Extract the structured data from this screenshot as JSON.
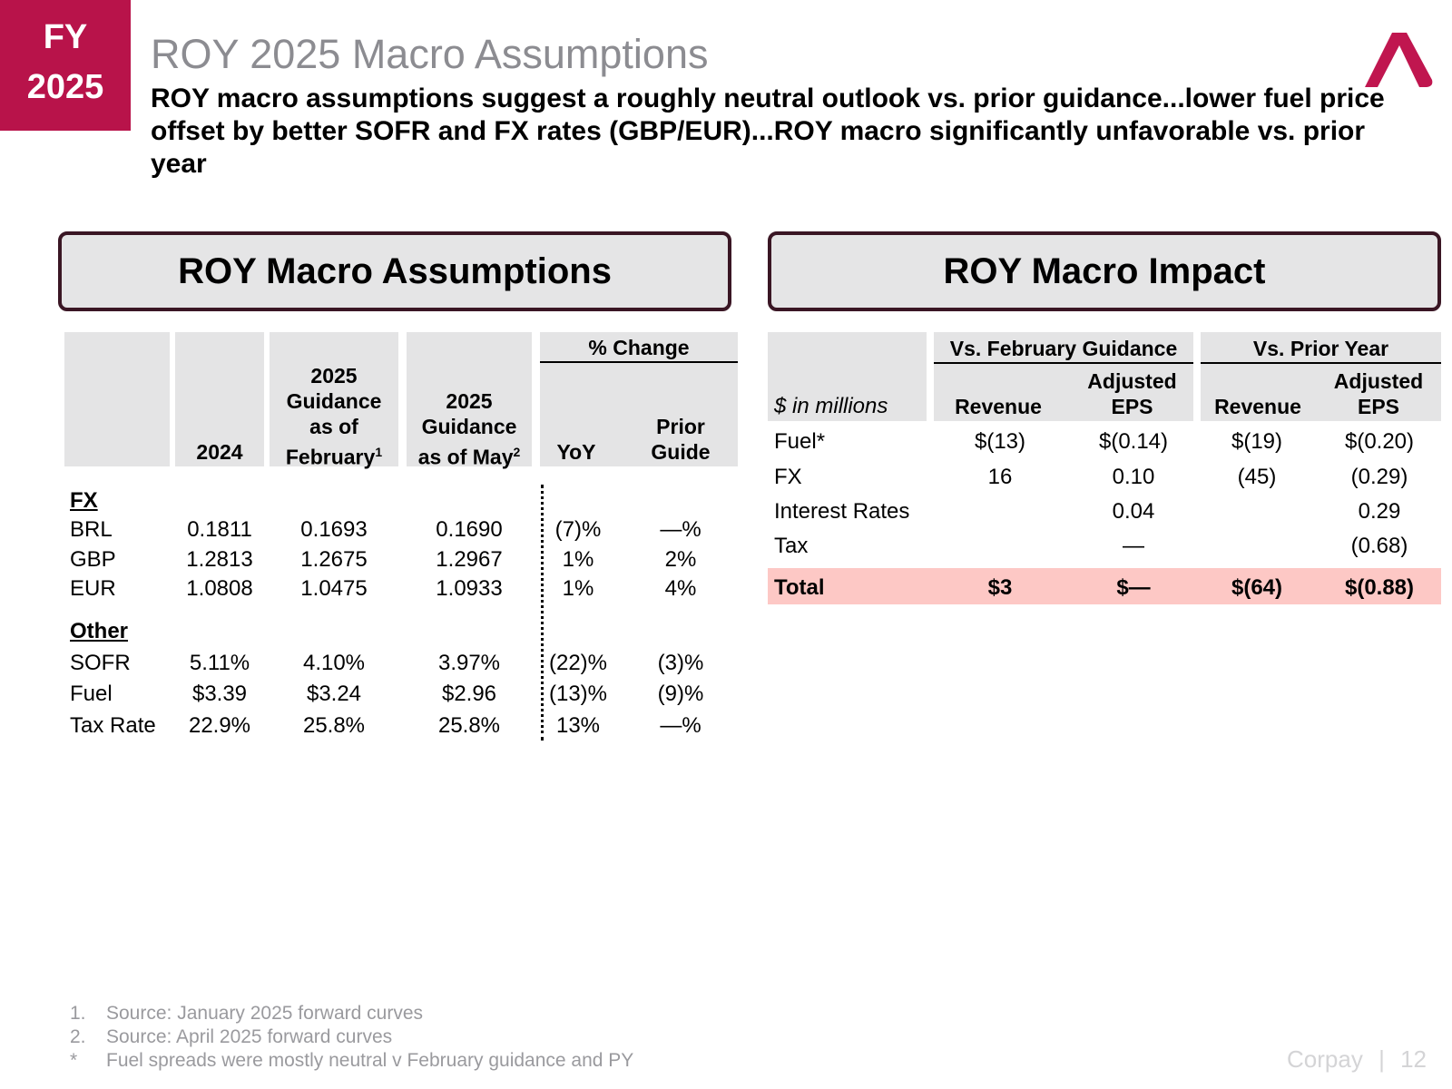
{
  "badge": {
    "line1": "FY",
    "line2": "2025"
  },
  "title": "ROY 2025 Macro Assumptions",
  "subtitle": "ROY macro assumptions suggest a roughly neutral outlook vs. prior guidance...lower fuel price offset by better SOFR and FX rates (GBP/EUR)...ROY macro significantly unfavorable vs. prior year",
  "left_panel": {
    "title": "ROY Macro Assumptions",
    "headers": {
      "y2024": "2024",
      "feb_a": "2025",
      "feb_b": "Guidance",
      "feb_c": "as of",
      "feb_d": "February",
      "feb_sup": "1",
      "may_a": "2025",
      "may_b": "Guidance",
      "may_c": "as of May",
      "may_sup": "2",
      "pct_change": "% Change",
      "yoy": "YoY",
      "prior_a": "Prior",
      "prior_b": "Guide"
    },
    "sections": [
      {
        "label": "FX",
        "rows": [
          {
            "name": "BRL",
            "v2024": "0.1811",
            "feb": "0.1693",
            "may": "0.1690",
            "yoy": "(7)%",
            "prior": "—%"
          },
          {
            "name": "GBP",
            "v2024": "1.2813",
            "feb": "1.2675",
            "may": "1.2967",
            "yoy": "1%",
            "prior": "2%"
          },
          {
            "name": "EUR",
            "v2024": "1.0808",
            "feb": "1.0475",
            "may": "1.0933",
            "yoy": "1%",
            "prior": "4%"
          }
        ]
      },
      {
        "label": "Other",
        "rows": [
          {
            "name": "SOFR",
            "v2024": "5.11%",
            "feb": "4.10%",
            "may": "3.97%",
            "yoy": "(22)%",
            "prior": "(3)%"
          },
          {
            "name": "Fuel",
            "v2024": "$3.39",
            "feb": "$3.24",
            "may": "$2.96",
            "yoy": "(13)%",
            "prior": "(9)%"
          },
          {
            "name": "Tax Rate",
            "v2024": "22.9%",
            "feb": "25.8%",
            "may": "25.8%",
            "yoy": "13%",
            "prior": "—%"
          }
        ]
      }
    ]
  },
  "right_panel": {
    "title": "ROY Macro Impact",
    "headers": {
      "units": "$ in millions",
      "vs_feb": "Vs. February Guidance",
      "vs_py": "Vs. Prior Year",
      "revenue": "Revenue",
      "adj_a": "Adjusted",
      "adj_b": "EPS"
    },
    "rows": [
      {
        "name": "Fuel*",
        "feb_rev": "$(13)",
        "feb_eps": "$(0.14)",
        "py_rev": "$(19)",
        "py_eps": "$(0.20)"
      },
      {
        "name": "FX",
        "feb_rev": "16",
        "feb_eps": "0.10",
        "py_rev": "(45)",
        "py_eps": "(0.29)"
      },
      {
        "name": "Interest Rates",
        "feb_rev": "",
        "feb_eps": "0.04",
        "py_rev": "",
        "py_eps": "0.29"
      },
      {
        "name": "Tax",
        "feb_rev": "",
        "feb_eps": "—",
        "py_rev": "",
        "py_eps": "(0.68)"
      }
    ],
    "total": {
      "name": "Total",
      "feb_rev": "$3",
      "feb_eps": "$—",
      "py_rev": "$(64)",
      "py_eps": "$(0.88)"
    }
  },
  "footnotes": [
    {
      "num": "1.",
      "text": "Source: January 2025 forward curves"
    },
    {
      "num": "2.",
      "text": "Source: April 2025 forward curves"
    },
    {
      "num": "*",
      "text": "Fuel spreads were mostly neutral v February guidance and PY"
    }
  ],
  "footer": {
    "brand": "Corpay",
    "separator": "|",
    "page": "12"
  },
  "colors": {
    "badge": "#b8134a",
    "logo": "#c0164f",
    "header_bg": "#e4e4e5",
    "total_bg": "#fdc8c5",
    "panel_border": "#3a1624"
  }
}
